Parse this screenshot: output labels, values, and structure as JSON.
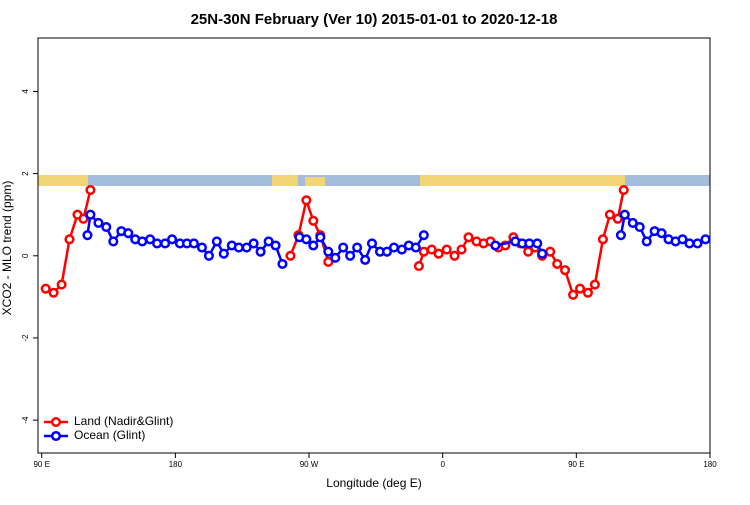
{
  "chart_data": {
    "type": "line",
    "title": "25N-30N February (Ver 10)   2015-01-01 to 2020-12-18",
    "x_label": "Longitude (deg E)",
    "y_label": "XCO2 - MLO trend (ppm)",
    "xlim": [
      87.5,
      540
    ],
    "ylim": [
      -4.8,
      5.3
    ],
    "xticks": [
      {
        "value": 90,
        "label": "90 E"
      },
      {
        "value": 180,
        "label": "180"
      },
      {
        "value": 270,
        "label": "90 W"
      },
      {
        "value": 360,
        "label": "0"
      },
      {
        "value": 450,
        "label": "90 E"
      },
      {
        "value": 540,
        "label": "180"
      }
    ],
    "yticks": [
      -4,
      -2,
      0,
      2,
      4
    ],
    "legend": "bottom-left",
    "series": [
      {
        "name": "Land (Nadir&Glint)",
        "color": "#ff0000",
        "x": [
          92.7,
          98,
          103.4,
          108.7,
          114.1,
          118.1,
          122.8,
          null,
          257.5,
          262.9,
          268.2,
          272.9,
          277.6,
          283,
          null,
          344,
          347.3,
          352.6,
          357.3,
          362.7,
          368,
          372.7,
          377.4,
          382.8,
          387.5,
          392.2,
          397.5,
          402.2,
          407.6,
          412.3,
          417.6,
          422.3,
          427,
          432.4,
          437.1,
          442.4,
          447.8,
          452.5,
          457.8,
          462.5,
          467.9,
          472.6,
          477.9,
          481.9
        ],
        "values": [
          -0.8,
          -0.9,
          -0.7,
          0.4,
          1.0,
          0.9,
          1.6,
          null,
          0,
          0.5,
          1.35,
          0.85,
          0.5,
          -0.15,
          null,
          -0.25,
          0.1,
          0.15,
          0.05,
          0.15,
          0,
          0.15,
          0.45,
          0.35,
          0.3,
          0.35,
          0.2,
          0.25,
          0.45,
          0.3,
          0.1,
          0.2,
          0,
          0.1,
          -0.2,
          -0.35,
          -0.95,
          -0.8,
          -0.9,
          -0.7,
          0.4,
          1.0,
          0.9,
          1.6
        ]
      },
      {
        "name": "Ocean (Glint)",
        "color": "#0000ff",
        "x": [
          120.8,
          122.8,
          128.2,
          133.5,
          138.2,
          143.6,
          148.3,
          153,
          157.7,
          163,
          167.7,
          173.1,
          177.8,
          183.1,
          187.8,
          192.5,
          197.9,
          202.6,
          207.9,
          212.6,
          218,
          222.7,
          228,
          232.7,
          237.4,
          242.8,
          247.5,
          252.1,
          null,
          263.5,
          268.2,
          272.9,
          277.6,
          283,
          287.7,
          293,
          297.7,
          302.4,
          307.8,
          312.4,
          317.8,
          322.5,
          327.2,
          332.5,
          337.2,
          341.9,
          347.3,
          null,
          395.5,
          408.9,
          413.6,
          418.3,
          423.7,
          427,
          null,
          480,
          482.6,
          488,
          492.7,
          497.4,
          502.7,
          507.4,
          512.1,
          516.8,
          521.5,
          526.2,
          531.6,
          537
        ],
        "values": [
          0.5,
          1.0,
          0.8,
          0.7,
          0.35,
          0.6,
          0.55,
          0.4,
          0.35,
          0.4,
          0.3,
          0.3,
          0.4,
          0.3,
          0.3,
          0.3,
          0.2,
          0,
          0.35,
          0.05,
          0.25,
          0.2,
          0.2,
          0.3,
          0.1,
          0.35,
          0.25,
          -0.2,
          null,
          0.45,
          0.4,
          0.25,
          0.45,
          0.1,
          -0.05,
          0.2,
          0,
          0.2,
          -0.1,
          0.3,
          0.1,
          0.1,
          0.2,
          0.15,
          0.25,
          0.2,
          0.5,
          null,
          0.25,
          0.35,
          0.3,
          0.3,
          0.3,
          0.05,
          null,
          0.5,
          1.0,
          0.8,
          0.7,
          0.35,
          0.6,
          0.55,
          0.4,
          0.35,
          0.4,
          0.3,
          0.3,
          0.4
        ]
      }
    ]
  }
}
